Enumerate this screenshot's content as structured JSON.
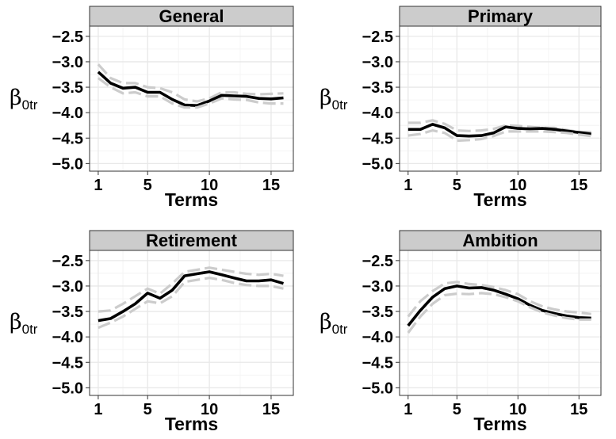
{
  "chart_data": [
    {
      "type": "line",
      "title": "General",
      "xlabel": "Terms",
      "ylabel_main": "β",
      "ylabel_sub": "0tr",
      "xlim": [
        0.3,
        16.8
      ],
      "ylim": [
        -5.15,
        -2.3
      ],
      "xticks": [
        1,
        5,
        10,
        15
      ],
      "yticks": [
        -2.5,
        -3.0,
        -3.5,
        -4.0,
        -4.5,
        -5.0
      ],
      "ytick_labels": [
        "−2.5",
        "−3.0",
        "−3.5",
        "−4.0",
        "−4.5",
        "−5.0"
      ],
      "x": [
        1,
        2,
        3,
        4,
        5,
        6,
        7,
        8,
        9,
        10,
        11,
        12,
        13,
        14,
        15,
        16
      ],
      "series": [
        {
          "role": "upper",
          "values": [
            -3.05,
            -3.32,
            -3.42,
            -3.42,
            -3.5,
            -3.52,
            -3.6,
            -3.74,
            -3.78,
            -3.72,
            -3.6,
            -3.6,
            -3.63,
            -3.64,
            -3.63,
            -3.62
          ]
        },
        {
          "role": "estimate",
          "values": [
            -3.2,
            -3.42,
            -3.52,
            -3.5,
            -3.6,
            -3.6,
            -3.74,
            -3.85,
            -3.86,
            -3.77,
            -3.66,
            -3.67,
            -3.68,
            -3.72,
            -3.73,
            -3.71
          ]
        },
        {
          "role": "lower",
          "values": [
            -3.32,
            -3.5,
            -3.62,
            -3.6,
            -3.68,
            -3.68,
            -3.82,
            -3.9,
            -3.9,
            -3.82,
            -3.72,
            -3.74,
            -3.75,
            -3.8,
            -3.82,
            -3.82
          ]
        }
      ]
    },
    {
      "type": "line",
      "title": "Primary",
      "xlabel": "Terms",
      "ylabel_main": "β",
      "ylabel_sub": "0tr",
      "xlim": [
        0.3,
        16.8
      ],
      "ylim": [
        -5.15,
        -2.3
      ],
      "xticks": [
        1,
        5,
        10,
        15
      ],
      "yticks": [
        -2.5,
        -3.0,
        -3.5,
        -4.0,
        -4.5,
        -5.0
      ],
      "ytick_labels": [
        "−2.5",
        "−3.0",
        "−3.5",
        "−4.0",
        "−4.5",
        "−5.0"
      ],
      "x": [
        1,
        2,
        3,
        4,
        5,
        6,
        7,
        8,
        9,
        10,
        11,
        12,
        13,
        14,
        15,
        16
      ],
      "series": [
        {
          "role": "upper",
          "values": [
            -4.2,
            -4.2,
            -4.15,
            -4.22,
            -4.35,
            -4.36,
            -4.35,
            -4.32,
            -4.25,
            -4.26,
            -4.28,
            -4.3,
            -4.3,
            -4.34,
            -4.38,
            -4.38
          ]
        },
        {
          "role": "estimate",
          "values": [
            -4.33,
            -4.33,
            -4.23,
            -4.3,
            -4.45,
            -4.46,
            -4.45,
            -4.4,
            -4.28,
            -4.31,
            -4.32,
            -4.31,
            -4.33,
            -4.36,
            -4.39,
            -4.42
          ]
        },
        {
          "role": "lower",
          "values": [
            -4.45,
            -4.42,
            -4.35,
            -4.4,
            -4.55,
            -4.54,
            -4.52,
            -4.46,
            -4.37,
            -4.37,
            -4.37,
            -4.37,
            -4.38,
            -4.4,
            -4.43,
            -4.46
          ]
        }
      ]
    },
    {
      "type": "line",
      "title": "Retirement",
      "xlabel": "Terms",
      "ylabel_main": "β",
      "ylabel_sub": "0tr",
      "xlim": [
        0.3,
        16.8
      ],
      "ylim": [
        -5.15,
        -2.3
      ],
      "xticks": [
        1,
        5,
        10,
        15
      ],
      "yticks": [
        -2.5,
        -3.0,
        -3.5,
        -4.0,
        -4.5,
        -5.0
      ],
      "ytick_labels": [
        "−2.5",
        "−3.0",
        "−3.5",
        "−4.0",
        "−4.5",
        "−5.0"
      ],
      "x": [
        1,
        2,
        3,
        4,
        5,
        6,
        7,
        8,
        9,
        10,
        11,
        12,
        13,
        14,
        15,
        16
      ],
      "series": [
        {
          "role": "upper",
          "values": [
            -3.5,
            -3.48,
            -3.35,
            -3.2,
            -3.05,
            -3.15,
            -2.95,
            -2.72,
            -2.68,
            -2.64,
            -2.68,
            -2.72,
            -2.76,
            -2.78,
            -2.76,
            -2.8
          ]
        },
        {
          "role": "estimate",
          "values": [
            -3.68,
            -3.64,
            -3.5,
            -3.35,
            -3.14,
            -3.24,
            -3.08,
            -2.8,
            -2.76,
            -2.72,
            -2.78,
            -2.84,
            -2.9,
            -2.9,
            -2.88,
            -2.95
          ]
        },
        {
          "role": "lower",
          "values": [
            -3.82,
            -3.72,
            -3.6,
            -3.45,
            -3.3,
            -3.34,
            -3.2,
            -2.92,
            -2.88,
            -2.84,
            -2.88,
            -2.94,
            -2.98,
            -3.0,
            -3.0,
            -3.05
          ]
        }
      ]
    },
    {
      "type": "line",
      "title": "Ambition",
      "xlabel": "Terms",
      "ylabel_main": "β",
      "ylabel_sub": "0tr",
      "xlim": [
        0.3,
        16.8
      ],
      "ylim": [
        -5.15,
        -2.3
      ],
      "xticks": [
        1,
        5,
        10,
        15
      ],
      "yticks": [
        -2.5,
        -3.0,
        -3.5,
        -4.0,
        -4.5,
        -5.0
      ],
      "ytick_labels": [
        "−2.5",
        "−3.0",
        "−3.5",
        "−4.0",
        "−4.5",
        "−5.0"
      ],
      "x": [
        1,
        2,
        3,
        4,
        5,
        6,
        7,
        8,
        9,
        10,
        11,
        12,
        13,
        14,
        15,
        16
      ],
      "series": [
        {
          "role": "upper",
          "values": [
            -3.6,
            -3.3,
            -3.1,
            -2.95,
            -2.92,
            -2.96,
            -2.98,
            -3.02,
            -3.08,
            -3.16,
            -3.3,
            -3.4,
            -3.46,
            -3.5,
            -3.52,
            -3.55
          ]
        },
        {
          "role": "estimate",
          "values": [
            -3.78,
            -3.48,
            -3.22,
            -3.05,
            -3.0,
            -3.04,
            -3.03,
            -3.08,
            -3.16,
            -3.25,
            -3.38,
            -3.48,
            -3.54,
            -3.59,
            -3.62,
            -3.63
          ]
        },
        {
          "role": "lower",
          "values": [
            -3.92,
            -3.6,
            -3.35,
            -3.18,
            -3.15,
            -3.16,
            -3.14,
            -3.16,
            -3.22,
            -3.3,
            -3.42,
            -3.52,
            -3.58,
            -3.63,
            -3.66,
            -3.66
          ]
        }
      ]
    }
  ],
  "style": {
    "strip_fill": "#cccccc",
    "strip_border": "#333333",
    "panel_border": "#333333",
    "grid_major": "#e8e8e8",
    "grid_minor": "#f4f4f4",
    "estimate_color": "#000000",
    "ci_color": "#cccccc"
  }
}
